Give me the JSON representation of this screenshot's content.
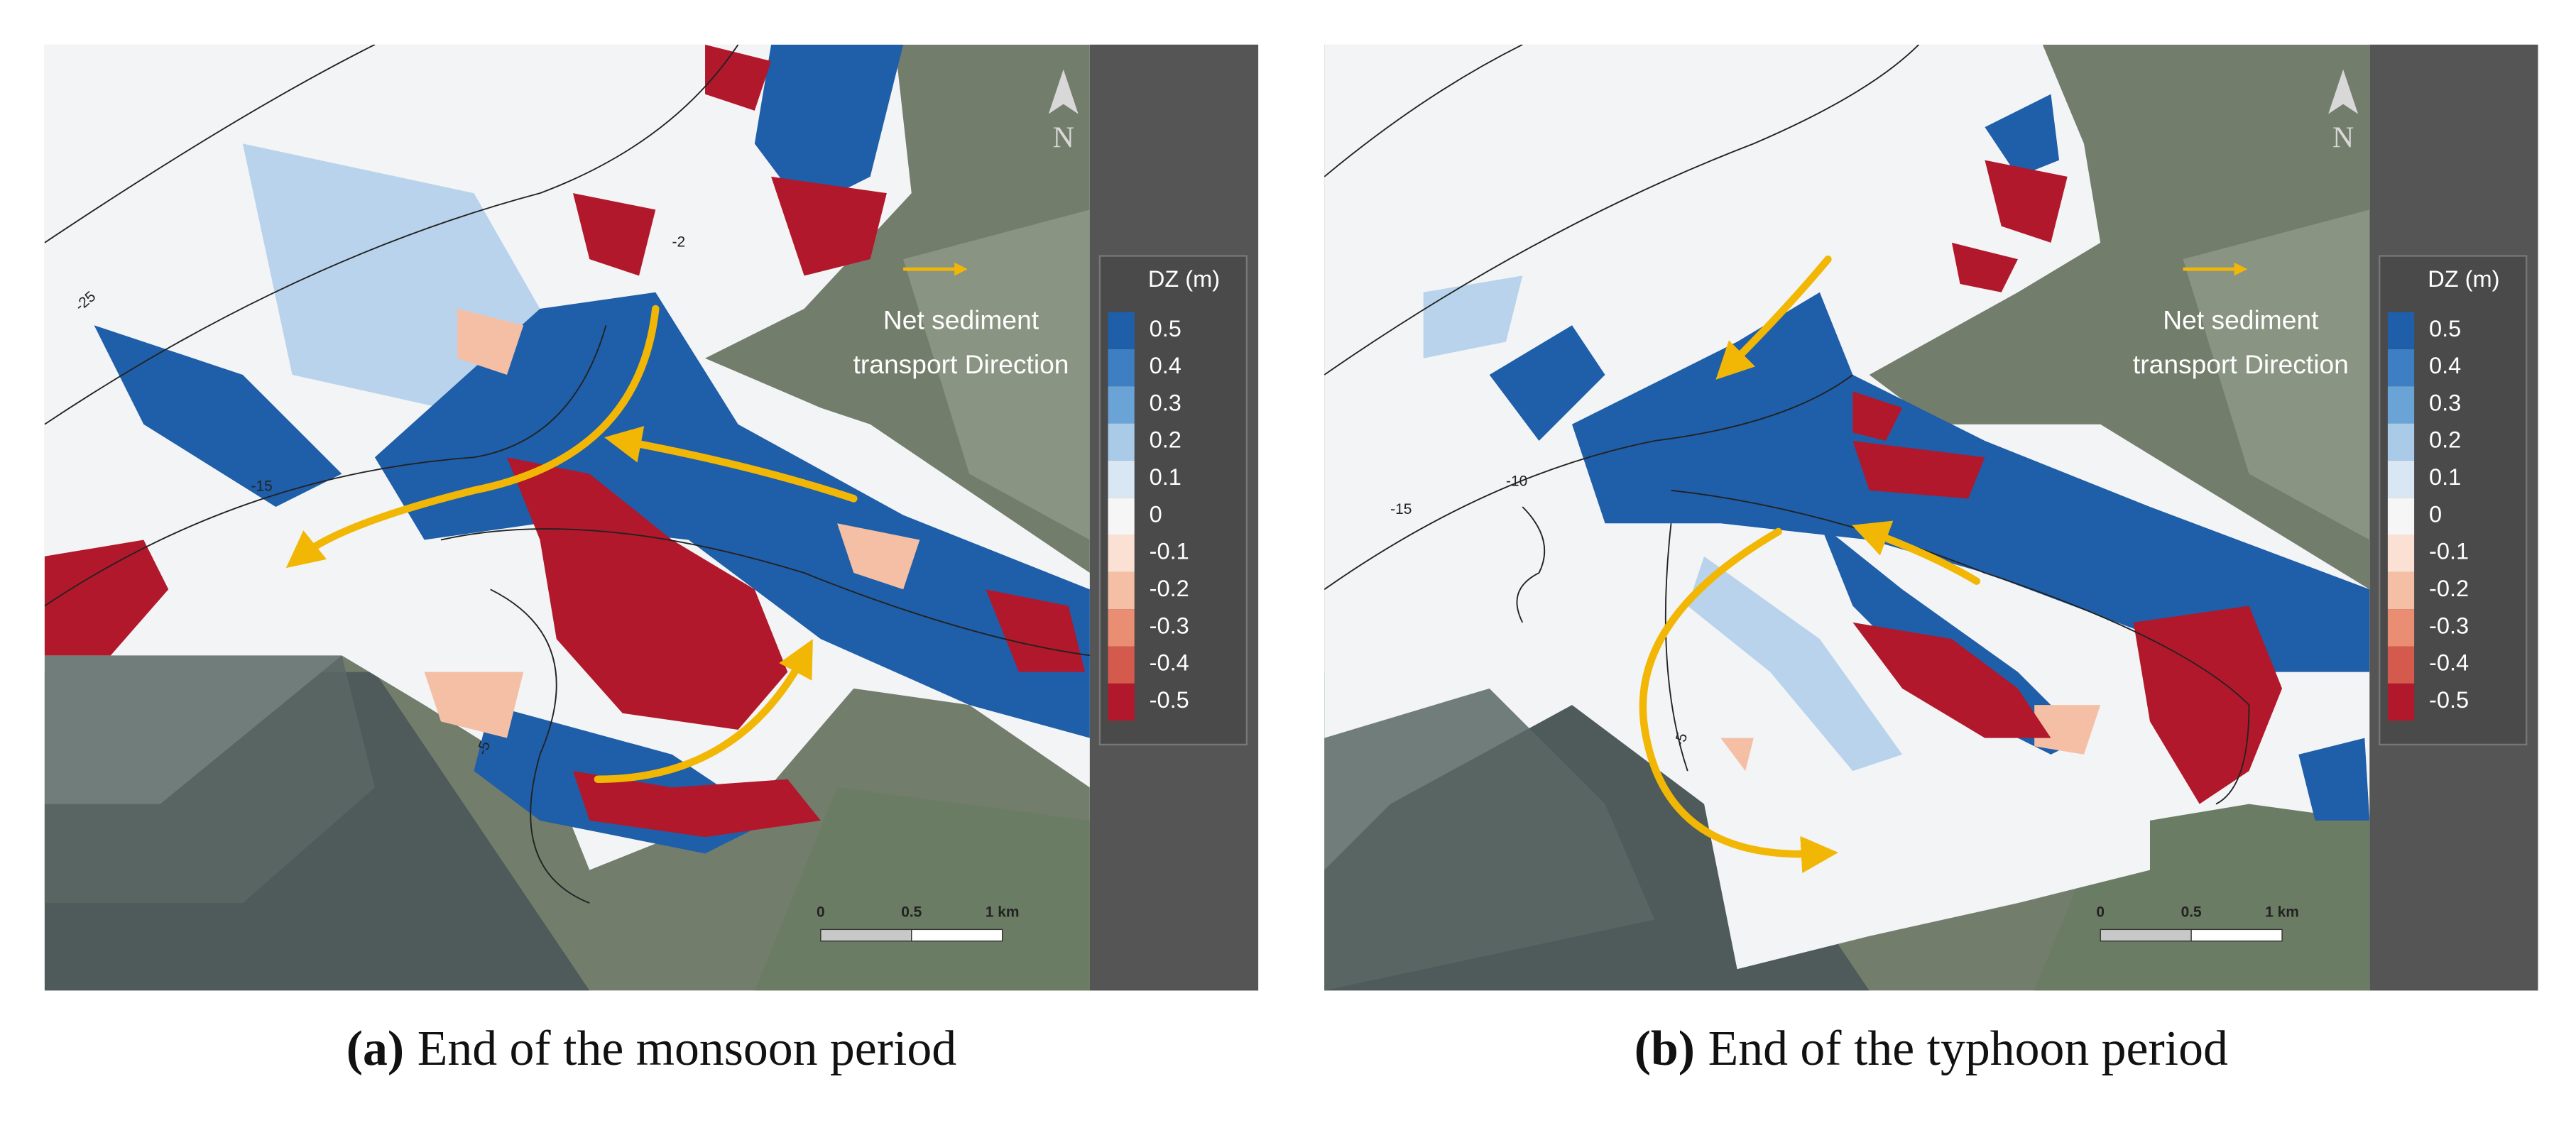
{
  "panels": [
    {
      "label": "(a)",
      "caption": "End of the monsoon period",
      "north": "N",
      "annotation": [
        "Net sediment",
        "transport Direction"
      ],
      "legend": {
        "title": "DZ (m)",
        "items": [
          {
            "label": "0.5",
            "color": "#1f5ea8"
          },
          {
            "label": "0.4",
            "color": "#3d7fc2"
          },
          {
            "label": "0.3",
            "color": "#6aa3d5"
          },
          {
            "label": "0.2",
            "color": "#a9cbe8"
          },
          {
            "label": "0.1",
            "color": "#d8e7f3"
          },
          {
            "label": "0",
            "color": "#f6f6f6"
          },
          {
            "label": "-0.1",
            "color": "#fbe1d3"
          },
          {
            "label": "-0.2",
            "color": "#f5bfa5"
          },
          {
            "label": "-0.3",
            "color": "#ea8e73"
          },
          {
            "label": "-0.4",
            "color": "#d45a4d"
          },
          {
            "label": "-0.5",
            "color": "#b2182b"
          }
        ]
      },
      "scale_bar": [
        "0",
        "0.5",
        "1 km"
      ],
      "contour_labels": [
        "-25",
        "-2",
        "-15",
        "-5"
      ]
    },
    {
      "label": "(b)",
      "caption": "End of the typhoon period",
      "north": "N",
      "annotation": [
        "Net sediment",
        "transport Direction"
      ],
      "legend": {
        "title": "DZ (m)",
        "items": [
          {
            "label": "0.5",
            "color": "#1f5ea8"
          },
          {
            "label": "0.4",
            "color": "#3d7fc2"
          },
          {
            "label": "0.3",
            "color": "#6aa3d5"
          },
          {
            "label": "0.2",
            "color": "#a9cbe8"
          },
          {
            "label": "0.1",
            "color": "#d8e7f3"
          },
          {
            "label": "0",
            "color": "#f6f6f6"
          },
          {
            "label": "-0.1",
            "color": "#fbe1d3"
          },
          {
            "label": "-0.2",
            "color": "#f5bfa5"
          },
          {
            "label": "-0.3",
            "color": "#ea8e73"
          },
          {
            "label": "-0.4",
            "color": "#d45a4d"
          },
          {
            "label": "-0.5",
            "color": "#b2182b"
          }
        ]
      },
      "scale_bar": [
        "0",
        "0.5",
        "1 km"
      ],
      "contour_labels": [
        "-15",
        "-10",
        "-5"
      ]
    }
  ]
}
